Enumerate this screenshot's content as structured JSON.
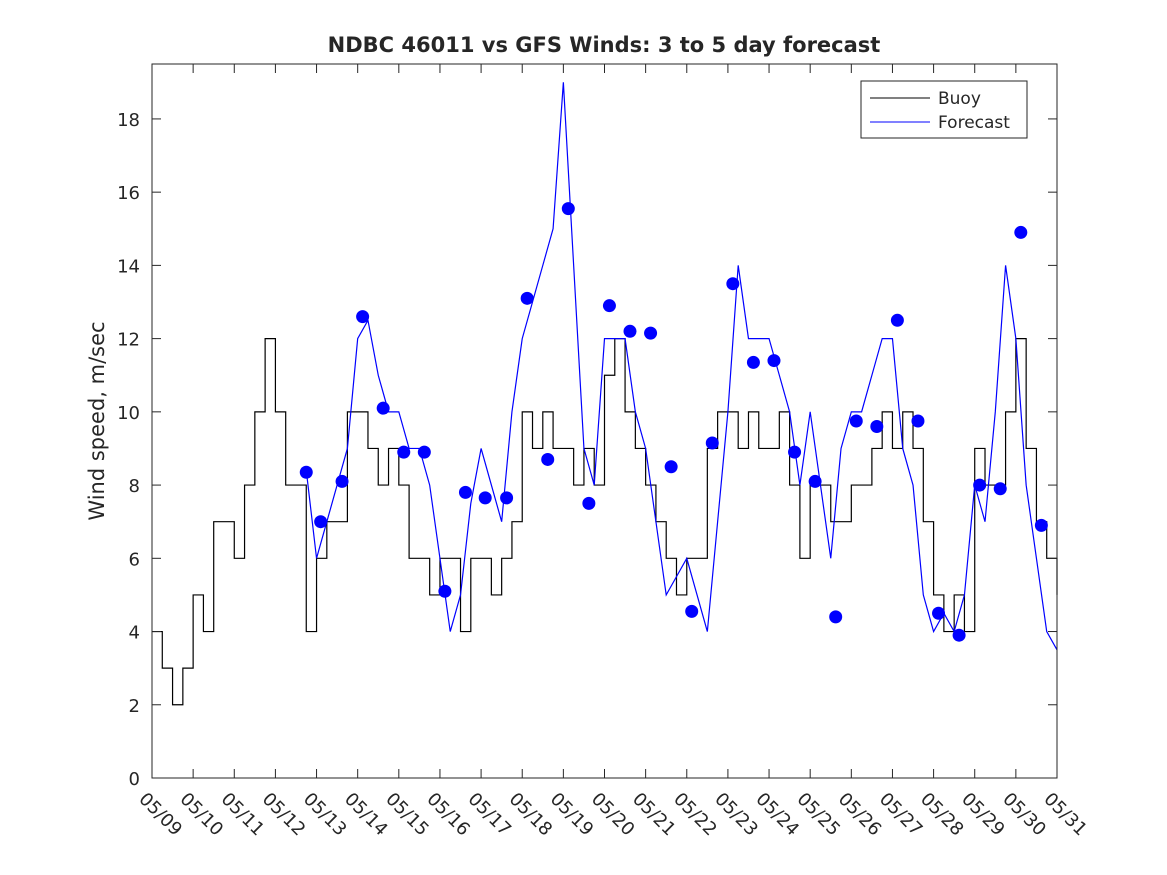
{
  "chart_data": {
    "type": "line",
    "title": "NDBC 46011 vs GFS Winds: 3 to 5 day forecast",
    "xlabel": "",
    "ylabel": "Wind speed, m/sec",
    "xlim": [
      "05/09",
      "05/31"
    ],
    "ylim": [
      0,
      19.5
    ],
    "x_tick_labels": [
      "05/09",
      "05/10",
      "05/11",
      "05/12",
      "05/13",
      "05/14",
      "05/15",
      "05/16",
      "05/17",
      "05/18",
      "05/19",
      "05/20",
      "05/21",
      "05/22",
      "05/23",
      "05/24",
      "05/25",
      "05/26",
      "05/27",
      "05/28",
      "05/29",
      "05/30",
      "05/31"
    ],
    "y_ticks": [
      0,
      2,
      4,
      6,
      8,
      10,
      12,
      14,
      16,
      18
    ],
    "grid": false,
    "legend": {
      "placement": "top-right",
      "entries": [
        "Buoy",
        "Forecast"
      ]
    },
    "colors": {
      "buoy": "#000000",
      "forecast": "#0000ff",
      "markers": "#0000ff"
    },
    "series": [
      {
        "name": "Buoy",
        "style": "black step line",
        "x_day_of_may": [
          9.0,
          9.25,
          9.5,
          9.75,
          10.0,
          10.25,
          10.5,
          10.75,
          11.0,
          11.25,
          11.5,
          11.75,
          12.0,
          12.25,
          12.5,
          12.75,
          13.0,
          13.25,
          13.5,
          13.75,
          14.0,
          14.25,
          14.5,
          14.75,
          15.0,
          15.25,
          15.5,
          15.75,
          16.0,
          16.25,
          16.5,
          16.75,
          17.0,
          17.25,
          17.5,
          17.75,
          18.0,
          18.25,
          18.5,
          18.75,
          19.0,
          19.25,
          19.5,
          19.75,
          20.0,
          20.25,
          20.5,
          20.75,
          21.0,
          21.25,
          21.5,
          21.75,
          22.0,
          22.25,
          22.5,
          22.75,
          23.0,
          23.25,
          23.5,
          23.75,
          24.0,
          24.25,
          24.5,
          24.75,
          25.0,
          25.25,
          25.5,
          25.75,
          26.0,
          26.25,
          26.5,
          26.75,
          27.0,
          27.25,
          27.5,
          27.75,
          28.0,
          28.25,
          28.5,
          28.75,
          29.0,
          29.25,
          29.5,
          29.75,
          30.0,
          30.25,
          30.5,
          30.75,
          31.0
        ],
        "y": [
          4,
          3,
          2,
          3,
          5,
          4,
          7,
          7,
          6,
          8,
          10,
          12,
          10,
          8,
          8,
          4,
          6,
          7,
          7,
          10,
          10,
          9,
          8,
          9,
          8,
          6,
          6,
          5,
          6,
          6,
          4,
          6,
          6,
          5,
          6,
          7,
          10,
          9,
          10,
          9,
          9,
          8,
          9,
          8,
          11,
          12,
          10,
          9,
          8,
          7,
          6,
          5,
          6,
          6,
          9,
          10,
          10,
          9,
          10,
          9,
          9,
          10,
          8,
          6,
          8,
          8,
          7,
          7,
          8,
          8,
          9,
          10,
          9,
          10,
          9,
          7,
          5,
          4,
          5,
          4,
          9,
          8,
          8,
          10,
          12,
          9,
          7,
          6,
          5
        ]
      },
      {
        "name": "Forecast",
        "style": "blue lines (multiple runs)",
        "x_day_of_may": [
          12.75,
          13.0,
          13.25,
          13.5,
          13.75,
          14.0,
          14.25,
          14.5,
          14.75,
          15.0,
          15.25,
          15.5,
          15.75,
          16.0,
          16.25,
          16.5,
          16.75,
          17.0,
          17.25,
          17.5,
          17.75,
          18.0,
          18.25,
          18.5,
          18.75,
          19.0,
          19.25,
          19.5,
          19.75,
          20.0,
          20.25,
          20.5,
          20.75,
          21.0,
          21.25,
          21.5,
          21.75,
          22.0,
          22.25,
          22.5,
          22.75,
          23.0,
          23.25,
          23.5,
          23.75,
          24.0,
          24.25,
          24.5,
          24.75,
          25.0,
          25.25,
          25.5,
          25.75,
          26.0,
          26.25,
          26.5,
          26.75,
          27.0,
          27.25,
          27.5,
          27.75,
          28.0,
          28.25,
          28.5,
          28.75,
          29.0,
          29.25,
          29.5,
          29.75,
          30.0,
          30.25,
          30.5,
          30.75,
          31.0
        ],
        "y": [
          8.4,
          6,
          7,
          8,
          9,
          12,
          12.5,
          11,
          10,
          10,
          9,
          9,
          8,
          6,
          4,
          5,
          7.5,
          9,
          8,
          7,
          10,
          12,
          13,
          14,
          15,
          19,
          14,
          9,
          8,
          12,
          12,
          12,
          10,
          9,
          7,
          5,
          5.5,
          6,
          5,
          4,
          7,
          10,
          14,
          12,
          12,
          12,
          11,
          10,
          8,
          10,
          8,
          6,
          9,
          10,
          10,
          11,
          12,
          12,
          9,
          8,
          5,
          4,
          4.5,
          4,
          5,
          8,
          7,
          10,
          14,
          12,
          8,
          6,
          4,
          3.5
        ]
      }
    ],
    "markers": {
      "name": "GFS forecast points",
      "x_day_of_may": [
        12.75,
        13.1,
        13.62,
        14.12,
        14.62,
        15.12,
        15.62,
        16.12,
        16.62,
        17.1,
        17.62,
        18.12,
        18.62,
        19.12,
        19.62,
        20.12,
        20.62,
        21.12,
        21.62,
        22.12,
        22.62,
        23.12,
        23.62,
        24.12,
        24.62,
        25.12,
        25.62,
        26.12,
        26.62,
        27.12,
        27.62,
        28.12,
        28.62,
        29.12,
        29.62,
        30.12,
        30.62
      ],
      "y": [
        8.35,
        7.0,
        8.1,
        12.6,
        10.1,
        8.9,
        8.9,
        5.1,
        7.8,
        7.65,
        7.65,
        13.1,
        8.7,
        15.55,
        7.5,
        12.9,
        12.2,
        12.15,
        8.5,
        4.55,
        9.15,
        13.5,
        11.35,
        11.4,
        8.9,
        8.1,
        4.4,
        9.75,
        9.6,
        12.5,
        9.75,
        4.5,
        3.9,
        8.0,
        7.9,
        14.9,
        6.9
      ]
    }
  }
}
